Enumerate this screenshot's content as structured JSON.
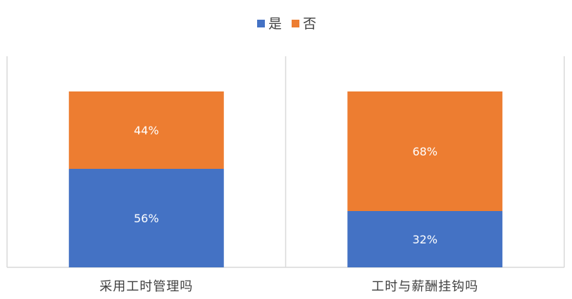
{
  "chart_data": {
    "type": "bar",
    "stacked": true,
    "percent": true,
    "categories": [
      "采用工时管理吗",
      "工时与薪酬挂钩吗"
    ],
    "series": [
      {
        "name": "是",
        "values": [
          56,
          32
        ],
        "labels": [
          "56%",
          "32%"
        ],
        "color": "#4472C4"
      },
      {
        "name": "否",
        "values": [
          44,
          68
        ],
        "labels": [
          "44%",
          "68%"
        ],
        "color": "#ED7D31"
      }
    ],
    "ylim": [
      0,
      100
    ],
    "legend_position": "top",
    "grid": false
  }
}
